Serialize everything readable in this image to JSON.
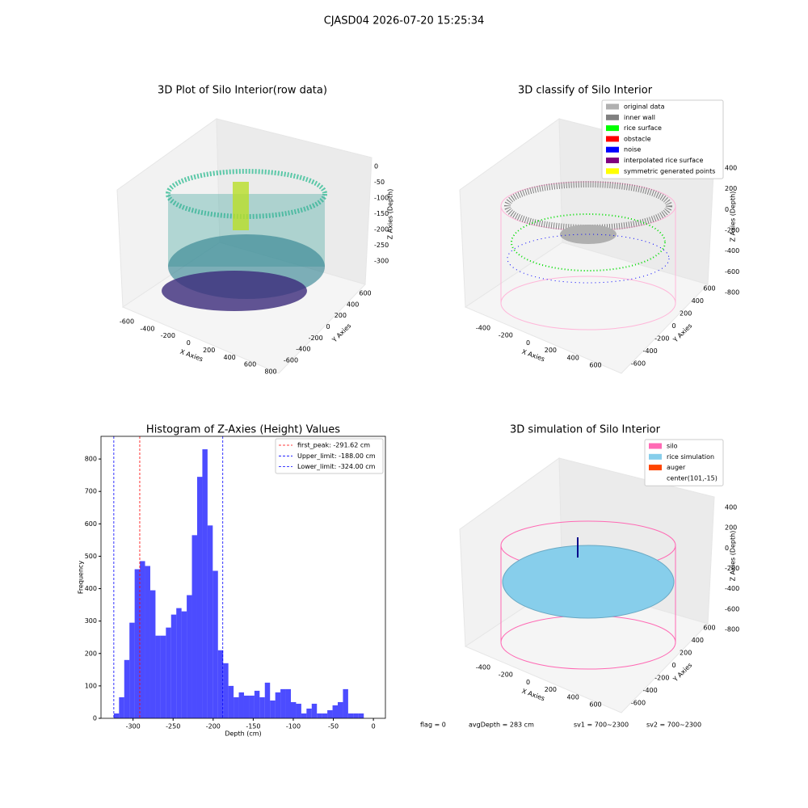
{
  "figure": {
    "title": "CJASD04 2026-07-20 15:25:34",
    "footer": [
      "flag = 0",
      "avgDepth = 283 cm",
      "sv1 = 700~2300",
      "sv2 = 700~2300"
    ]
  },
  "chart_data": [
    {
      "type": "scatter3d",
      "title": "3D Plot of Silo Interior(row data)",
      "xlabel": "X Axies",
      "ylabel": "Y Axies",
      "zlabel": "Z Axies (Depth)",
      "xticks": [
        -600,
        -400,
        -200,
        0,
        200,
        400,
        600,
        800
      ],
      "yticks": [
        -600,
        -400,
        -200,
        0,
        200,
        400,
        600
      ],
      "zticks": [
        0,
        -50,
        -100,
        -150,
        -200,
        -250,
        -300
      ]
    },
    {
      "type": "scatter3d",
      "title": "3D classify of Silo Interior",
      "xlabel": "X Axies",
      "ylabel": "Y Axies",
      "zlabel": "Z Axies (Depth)",
      "xticks": [
        -400,
        -200,
        0,
        200,
        400,
        600
      ],
      "yticks": [
        -600,
        -400,
        -200,
        0,
        200,
        400,
        600
      ],
      "zticks": [
        400,
        200,
        0,
        -200,
        -400,
        -600,
        -800
      ],
      "legend": [
        {
          "name": "original data",
          "color": "#b0b0b0"
        },
        {
          "name": "inner wall",
          "color": "#808080"
        },
        {
          "name": "rice surface",
          "color": "#00ff00"
        },
        {
          "name": "obstacle",
          "color": "#ff0000"
        },
        {
          "name": "noise",
          "color": "#0000ff"
        },
        {
          "name": "interpolated rice surface",
          "color": "#800080"
        },
        {
          "name": "symmetric generated points",
          "color": "#ffff00"
        }
      ]
    },
    {
      "type": "histogram",
      "title": "Histogram of Z-Axies (Height) Values",
      "xlabel": "Depth (cm)",
      "ylabel": "Frequency",
      "color": "#0000ff",
      "bins": [
        -324,
        -317.5,
        -311,
        -304.5,
        -298,
        -291.5,
        -285,
        -278.5,
        -272,
        -265.5,
        -259,
        -252.5,
        -246,
        -239.5,
        -233,
        -226.5,
        -220,
        -213.5,
        -207,
        -200.5,
        -194,
        -187.5,
        -181,
        -174.5,
        -168,
        -161.5,
        -155,
        -148.5,
        -142,
        -135.5,
        -129,
        -122.5,
        -116,
        -109.5,
        -103,
        -96.5,
        -90,
        -83.5,
        -77,
        -70.5,
        -64,
        -57.5,
        -51,
        -44.5,
        -38,
        -31.5,
        -25,
        -18.5,
        -12
      ],
      "values": [
        15,
        65,
        180,
        295,
        460,
        485,
        470,
        395,
        255,
        255,
        280,
        320,
        340,
        330,
        380,
        565,
        745,
        830,
        595,
        455,
        210,
        170,
        100,
        65,
        80,
        70,
        70,
        85,
        65,
        110,
        55,
        80,
        90,
        90,
        50,
        45,
        15,
        30,
        45,
        15,
        15,
        25,
        40,
        50,
        90,
        15,
        15,
        15
      ],
      "xlim": [
        -340,
        15
      ],
      "ylim": [
        0,
        870
      ],
      "xticks": [
        -300,
        -250,
        -200,
        -150,
        -100,
        -50,
        0
      ],
      "yticks": [
        0,
        100,
        200,
        300,
        400,
        500,
        600,
        700,
        800
      ],
      "lines": [
        {
          "name": "first_peak: -291.62 cm",
          "value": -291.62,
          "color": "#ff0000"
        },
        {
          "name": "Upper_limit: -188.00 cm",
          "value": -188,
          "color": "#0000ff"
        },
        {
          "name": "Lower_limit: -324.00 cm",
          "value": -324,
          "color": "#0000ff"
        }
      ]
    },
    {
      "type": "scatter3d",
      "title": "3D simulation of Silo Interior",
      "xlabel": "X Axies",
      "ylabel": "Y Axies",
      "zlabel": "Z Axies (Depth)",
      "xticks": [
        -400,
        -200,
        0,
        200,
        400,
        600
      ],
      "yticks": [
        -600,
        -400,
        -200,
        0,
        200,
        400,
        600
      ],
      "zticks": [
        400,
        200,
        0,
        -200,
        -400,
        -600,
        -800
      ],
      "legend": [
        {
          "name": "silo",
          "color": "#ff69b4"
        },
        {
          "name": "rice simulation",
          "color": "#87ceeb"
        },
        {
          "name": "auger",
          "color": "#ff4500"
        },
        {
          "name": "center(101,-15)"
        }
      ]
    }
  ]
}
